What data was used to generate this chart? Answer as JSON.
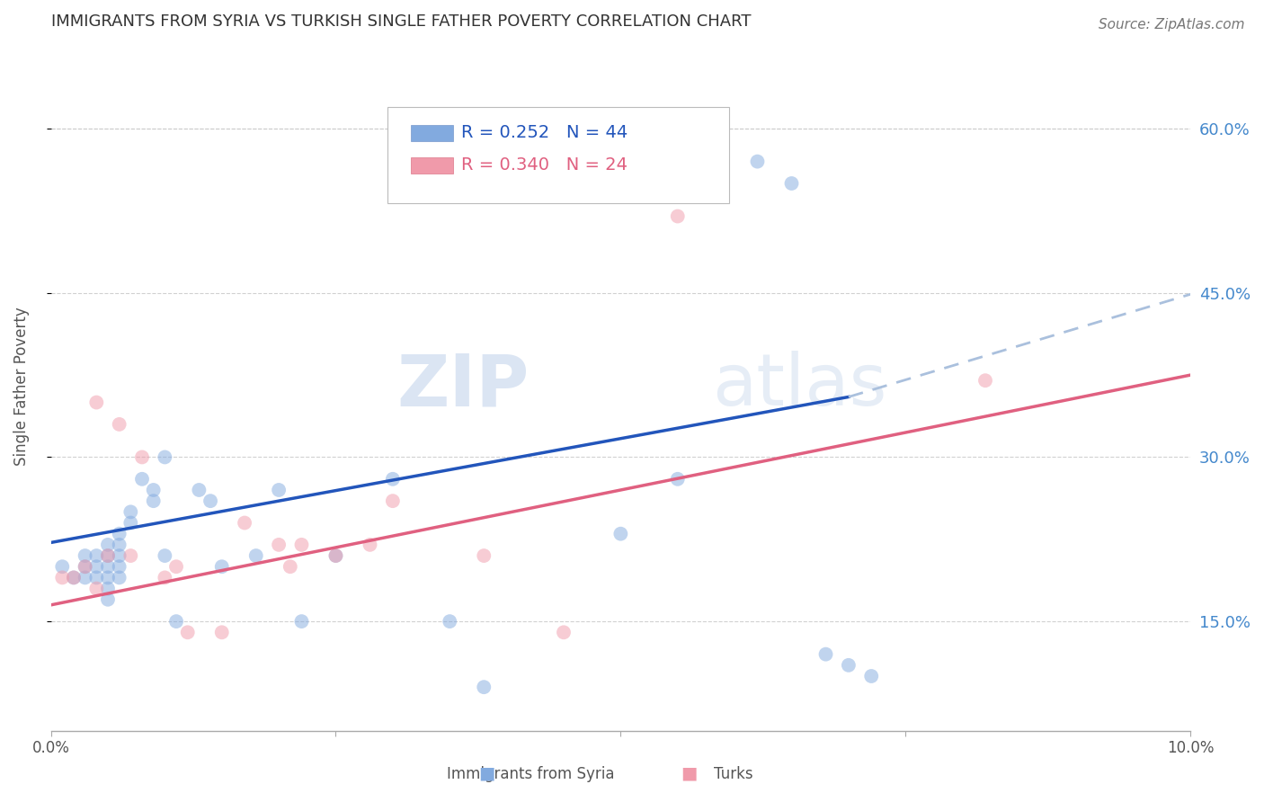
{
  "title": "IMMIGRANTS FROM SYRIA VS TURKISH SINGLE FATHER POVERTY CORRELATION CHART",
  "source": "Source: ZipAtlas.com",
  "ylabel": "Single Father Poverty",
  "watermark_zip": "ZIP",
  "watermark_atlas": "atlas",
  "legend_r1": "0.252",
  "legend_n1": "44",
  "legend_r2": "0.340",
  "legend_n2": "24",
  "legend_label1": "Immigrants from Syria",
  "legend_label2": "Turks",
  "xlim": [
    0.0,
    0.1
  ],
  "ylim": [
    0.05,
    0.68
  ],
  "yticks_right": [
    0.15,
    0.3,
    0.45,
    0.6
  ],
  "ytick_right_labels": [
    "15.0%",
    "30.0%",
    "45.0%",
    "60.0%"
  ],
  "color_syria": "#82aadf",
  "color_turk": "#f09aaa",
  "color_line_syria": "#2255bb",
  "color_line_turk": "#e06080",
  "color_dashed": "#aac0dd",
  "background": "#ffffff",
  "title_color": "#333333",
  "tick_color_right": "#4488cc",
  "grid_color": "#cccccc",
  "syria_x": [
    0.001,
    0.002,
    0.003,
    0.003,
    0.003,
    0.004,
    0.004,
    0.004,
    0.005,
    0.005,
    0.005,
    0.005,
    0.005,
    0.005,
    0.006,
    0.006,
    0.006,
    0.006,
    0.006,
    0.007,
    0.007,
    0.008,
    0.009,
    0.009,
    0.01,
    0.01,
    0.011,
    0.013,
    0.014,
    0.015,
    0.018,
    0.02,
    0.022,
    0.025,
    0.03,
    0.035,
    0.038,
    0.05,
    0.055,
    0.062,
    0.065,
    0.068,
    0.07,
    0.072
  ],
  "syria_y": [
    0.2,
    0.19,
    0.2,
    0.19,
    0.21,
    0.2,
    0.19,
    0.21,
    0.22,
    0.21,
    0.2,
    0.19,
    0.18,
    0.17,
    0.23,
    0.22,
    0.21,
    0.2,
    0.19,
    0.25,
    0.24,
    0.28,
    0.27,
    0.26,
    0.3,
    0.21,
    0.15,
    0.27,
    0.26,
    0.2,
    0.21,
    0.27,
    0.15,
    0.21,
    0.28,
    0.15,
    0.09,
    0.23,
    0.28,
    0.57,
    0.55,
    0.12,
    0.11,
    0.1
  ],
  "turk_x": [
    0.001,
    0.002,
    0.003,
    0.004,
    0.004,
    0.005,
    0.006,
    0.007,
    0.008,
    0.01,
    0.011,
    0.012,
    0.015,
    0.017,
    0.02,
    0.021,
    0.022,
    0.025,
    0.028,
    0.03,
    0.038,
    0.045,
    0.055,
    0.082
  ],
  "turk_y": [
    0.19,
    0.19,
    0.2,
    0.18,
    0.35,
    0.21,
    0.33,
    0.21,
    0.3,
    0.19,
    0.2,
    0.14,
    0.14,
    0.24,
    0.22,
    0.2,
    0.22,
    0.21,
    0.22,
    0.26,
    0.21,
    0.14,
    0.52,
    0.37
  ],
  "marker_size": 130,
  "marker_alpha": 0.5,
  "line_syria_x0": 0.0,
  "line_syria_x1": 0.07,
  "line_syria_y0": 0.222,
  "line_syria_y1": 0.355,
  "line_dashed_x0": 0.07,
  "line_dashed_x1": 0.102,
  "line_dashed_y0": 0.355,
  "line_dashed_y1": 0.455,
  "line_turk_x0": 0.0,
  "line_turk_x1": 0.1,
  "line_turk_y0": 0.165,
  "line_turk_y1": 0.375
}
